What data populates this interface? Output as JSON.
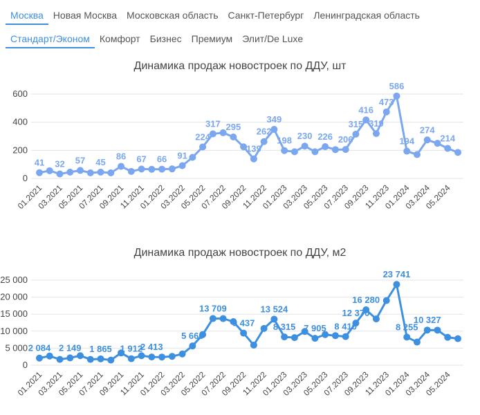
{
  "tabs": {
    "regions": [
      "Москва",
      "Новая Москва",
      "Московская область",
      "Санкт-Петербург",
      "Ленинградская область"
    ],
    "active_region": 0,
    "segments": [
      "Стандарт/Эконом",
      "Комфорт",
      "Бизнес",
      "Премиум",
      "Элит/De Luxe"
    ],
    "active_segment": 0
  },
  "chart_data": [
    {
      "type": "line",
      "title": "Динамика продаж новостроек по ДДУ, шт",
      "color": "#7aa7f0",
      "grid": true,
      "categories": [
        "01.2021",
        null,
        "03.2021",
        null,
        "05.2021",
        null,
        "07.2021",
        null,
        "09.2021",
        null,
        "11.2021",
        null,
        "01.2022",
        null,
        "03.2022",
        null,
        "05.2022",
        null,
        "07.2022",
        null,
        "09.2022",
        null,
        "11.2022",
        null,
        "01.2023",
        null,
        "03.2023",
        null,
        "05.2023",
        null,
        "07.2023",
        null,
        "09.2023",
        null,
        "11.2023",
        null,
        "01.2024",
        null,
        "03.2024",
        null,
        "05.2024",
        null
      ],
      "values": [
        41,
        55,
        32,
        45,
        57,
        40,
        45,
        40,
        86,
        50,
        67,
        65,
        66,
        68,
        91,
        150,
        224,
        317,
        325,
        295,
        225,
        139,
        262,
        349,
        198,
        190,
        230,
        190,
        226,
        205,
        206,
        315,
        416,
        319,
        473,
        586,
        194,
        170,
        274,
        250,
        214,
        185
      ],
      "value_labels": [
        "41",
        null,
        "32",
        null,
        "57",
        null,
        "45",
        null,
        "86",
        null,
        "67",
        null,
        "66",
        null,
        "91",
        null,
        "224",
        "317",
        null,
        "295",
        null,
        "139",
        "262",
        "349",
        "198",
        null,
        "230",
        null,
        "226",
        null,
        "206",
        "315",
        "416",
        "319",
        "473",
        "586",
        "194",
        null,
        "274",
        null,
        "214",
        null
      ],
      "ylim": [
        0,
        600
      ],
      "yticks": [
        0,
        200,
        400,
        600
      ]
    },
    {
      "type": "line",
      "title": "Динамика продаж новостроек по ДДУ, м2",
      "color": "#3d8fe0",
      "grid": true,
      "categories": [
        "01.2021",
        null,
        "03.2021",
        null,
        "05.2021",
        null,
        "07.2021",
        null,
        "09.2021",
        null,
        "11.2021",
        null,
        "01.2022",
        null,
        "03.2022",
        null,
        "05.2022",
        null,
        "07.2022",
        null,
        "09.2022",
        null,
        "11.2022",
        null,
        "01.2023",
        null,
        "03.2023",
        null,
        "05.2023",
        null,
        "07.2023",
        null,
        "09.2023",
        null,
        "11.2023",
        null,
        "01.2024",
        null,
        "03.2024",
        null,
        "05.2024",
        null
      ],
      "values": [
        2084,
        2700,
        1700,
        2149,
        2800,
        1700,
        1865,
        1500,
        3600,
        1912,
        2800,
        2413,
        2400,
        2600,
        3300,
        5660,
        9000,
        13709,
        13700,
        12800,
        9437,
        5900,
        10800,
        13524,
        8315,
        8100,
        9900,
        7905,
        9000,
        8700,
        8410,
        12370,
        16280,
        13600,
        19000,
        23741,
        8255,
        6800,
        10327,
        10300,
        8200,
        7800
      ],
      "value_labels": [
        "2 084",
        null,
        null,
        "2 149",
        null,
        null,
        "1 865",
        null,
        null,
        "1 912",
        null,
        "2 413",
        null,
        null,
        null,
        "5 660",
        null,
        "13 709",
        null,
        null,
        "9 437",
        null,
        null,
        "13 524",
        "8 315",
        null,
        null,
        "7 905",
        null,
        null,
        "8 410",
        "12 370",
        "16 280",
        null,
        null,
        "23 741",
        "8 255",
        null,
        "10 327",
        null,
        null,
        null
      ],
      "ylim": [
        0,
        25000
      ],
      "yticks": [
        0,
        {
          "value": 5000,
          "label": "5 000"
        },
        {
          "value": 10000,
          "label": "10 000"
        },
        {
          "value": 15000,
          "label": "15 000"
        },
        {
          "value": 20000,
          "label": "20 000"
        },
        {
          "value": 25000,
          "label": "25 000"
        }
      ]
    }
  ]
}
